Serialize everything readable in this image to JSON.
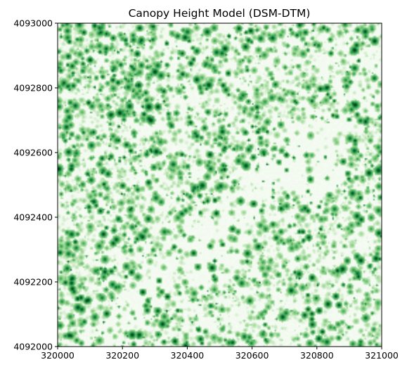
{
  "chart_data": {
    "type": "heatmap",
    "title": "Canopy Height Model (DSM-DTM)",
    "xlabel": "",
    "ylabel": "",
    "colormap": "Greens",
    "colorbar": false,
    "grid": false,
    "xlim": [
      320000,
      321000
    ],
    "ylim": [
      4092000,
      4093000
    ],
    "x_ticks": [
      320000,
      320200,
      320400,
      320600,
      320800,
      321000
    ],
    "y_ticks": [
      4092000,
      4092200,
      4092400,
      4092600,
      4092800,
      4093000
    ],
    "x_tick_labels": [
      "320000",
      "320200",
      "320400",
      "320600",
      "320800",
      "321000"
    ],
    "y_tick_labels": [
      "4092000",
      "4092200",
      "4092400",
      "4092600",
      "4092800",
      "4093000"
    ],
    "colors": {
      "low": "#f7fcf5",
      "mid_low": "#c7e9c0",
      "mid": "#74c476",
      "mid_high": "#31a354",
      "high": "#00441b",
      "axis": "#000000"
    }
  }
}
